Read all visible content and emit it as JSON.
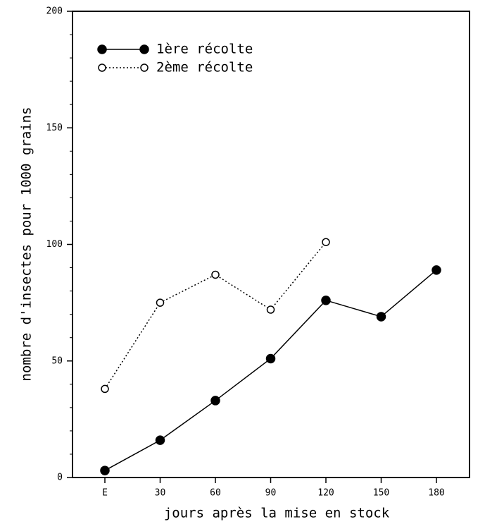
{
  "chart_data": {
    "type": "line",
    "y_label": "nombre d'insectes pour 1000 grains",
    "x_label": "jours après la mise en stock",
    "categories": [
      "E",
      "30",
      "60",
      "90",
      "120",
      "150",
      "180"
    ],
    "series": [
      {
        "name": "1ère récolte",
        "color": "#000000",
        "marker": "filled",
        "line_style": "solid",
        "values": [
          3,
          16,
          33,
          51,
          76,
          69,
          89
        ]
      },
      {
        "name": "2ème récolte",
        "color": "#000000",
        "marker": "open",
        "line_style": "dotted",
        "values": [
          38,
          75,
          87,
          72,
          101,
          null,
          null
        ]
      }
    ],
    "ylim": [
      0,
      200
    ],
    "yticks": [
      0,
      50,
      100,
      150,
      200
    ],
    "legend": "upper left"
  }
}
